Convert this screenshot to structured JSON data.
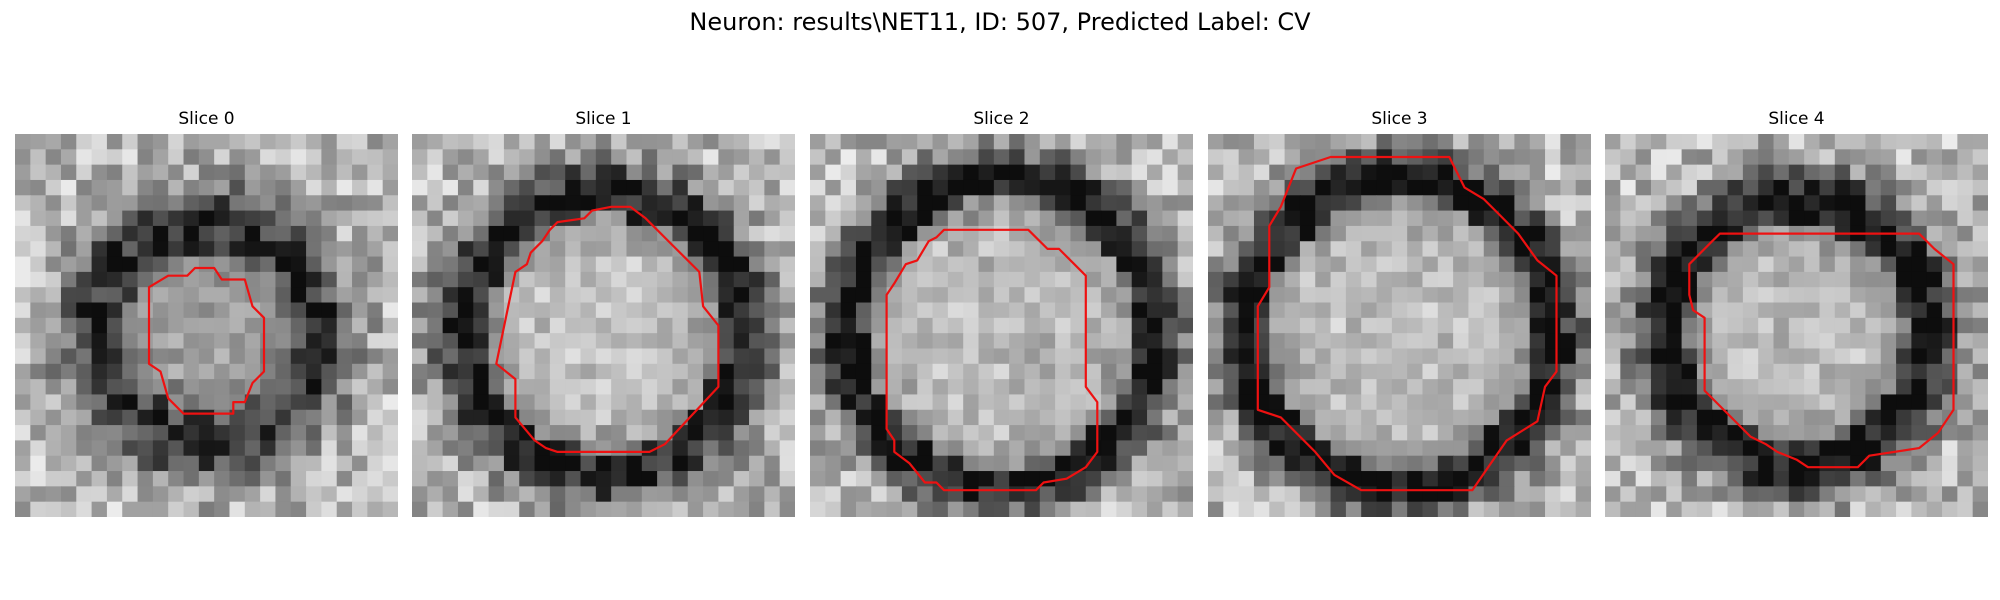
{
  "figure": {
    "suptitle": "Neuron: results\\NET11, ID: 507, Predicted Label: CV",
    "contour_color": "#ee1111",
    "panels": [
      {
        "title": "Slice 0",
        "ring_radius": 0.28,
        "ring_width": 0.11,
        "ring_darkness": 0.55,
        "center_brightness": 0.58,
        "seed": 11,
        "contour": [
          [
            0.35,
            0.4
          ],
          [
            0.4,
            0.37
          ],
          [
            0.45,
            0.37
          ],
          [
            0.47,
            0.35
          ],
          [
            0.52,
            0.35
          ],
          [
            0.54,
            0.38
          ],
          [
            0.6,
            0.38
          ],
          [
            0.62,
            0.45
          ],
          [
            0.65,
            0.48
          ],
          [
            0.65,
            0.62
          ],
          [
            0.62,
            0.65
          ],
          [
            0.6,
            0.7
          ],
          [
            0.57,
            0.7
          ],
          [
            0.57,
            0.73
          ],
          [
            0.44,
            0.73
          ],
          [
            0.4,
            0.69
          ],
          [
            0.38,
            0.62
          ],
          [
            0.35,
            0.6
          ]
        ]
      },
      {
        "title": "Slice 1",
        "ring_radius": 0.36,
        "ring_width": 0.09,
        "ring_darkness": 0.62,
        "center_brightness": 0.8,
        "seed": 23,
        "contour": [
          [
            0.27,
            0.36
          ],
          [
            0.3,
            0.34
          ],
          [
            0.31,
            0.31
          ],
          [
            0.34,
            0.28
          ],
          [
            0.36,
            0.25
          ],
          [
            0.38,
            0.23
          ],
          [
            0.45,
            0.22
          ],
          [
            0.47,
            0.2
          ],
          [
            0.52,
            0.19
          ],
          [
            0.57,
            0.19
          ],
          [
            0.61,
            0.22
          ],
          [
            0.68,
            0.29
          ],
          [
            0.75,
            0.36
          ],
          [
            0.76,
            0.45
          ],
          [
            0.8,
            0.5
          ],
          [
            0.8,
            0.66
          ],
          [
            0.66,
            0.81
          ],
          [
            0.62,
            0.83
          ],
          [
            0.38,
            0.83
          ],
          [
            0.35,
            0.82
          ],
          [
            0.32,
            0.8
          ],
          [
            0.27,
            0.74
          ],
          [
            0.27,
            0.64
          ],
          [
            0.22,
            0.6
          ]
        ]
      },
      {
        "title": "Slice 2",
        "ring_radius": 0.4,
        "ring_width": 0.08,
        "ring_darkness": 0.66,
        "center_brightness": 0.74,
        "seed": 37,
        "contour": [
          [
            0.33,
            0.27
          ],
          [
            0.34,
            0.26
          ],
          [
            0.35,
            0.25
          ],
          [
            0.57,
            0.25
          ],
          [
            0.62,
            0.3
          ],
          [
            0.65,
            0.3
          ],
          [
            0.72,
            0.37
          ],
          [
            0.72,
            0.66
          ],
          [
            0.75,
            0.7
          ],
          [
            0.75,
            0.83
          ],
          [
            0.72,
            0.87
          ],
          [
            0.67,
            0.9
          ],
          [
            0.61,
            0.91
          ],
          [
            0.59,
            0.93
          ],
          [
            0.35,
            0.93
          ],
          [
            0.33,
            0.91
          ],
          [
            0.3,
            0.91
          ],
          [
            0.26,
            0.86
          ],
          [
            0.22,
            0.83
          ],
          [
            0.22,
            0.8
          ],
          [
            0.2,
            0.77
          ],
          [
            0.2,
            0.42
          ],
          [
            0.22,
            0.39
          ],
          [
            0.25,
            0.34
          ],
          [
            0.28,
            0.33
          ],
          [
            0.31,
            0.28
          ]
        ]
      },
      {
        "title": "Slice 3",
        "ring_radius": 0.4,
        "ring_width": 0.08,
        "ring_darkness": 0.7,
        "center_brightness": 0.76,
        "seed": 53,
        "contour": [
          [
            0.16,
            0.24
          ],
          [
            0.19,
            0.19
          ],
          [
            0.23,
            0.09
          ],
          [
            0.32,
            0.06
          ],
          [
            0.63,
            0.06
          ],
          [
            0.67,
            0.14
          ],
          [
            0.72,
            0.17
          ],
          [
            0.76,
            0.21
          ],
          [
            0.81,
            0.26
          ],
          [
            0.86,
            0.33
          ],
          [
            0.91,
            0.37
          ],
          [
            0.91,
            0.62
          ],
          [
            0.88,
            0.66
          ],
          [
            0.86,
            0.75
          ],
          [
            0.78,
            0.8
          ],
          [
            0.69,
            0.93
          ],
          [
            0.4,
            0.93
          ],
          [
            0.33,
            0.89
          ],
          [
            0.28,
            0.83
          ],
          [
            0.19,
            0.74
          ],
          [
            0.13,
            0.72
          ],
          [
            0.13,
            0.45
          ],
          [
            0.16,
            0.4
          ]
        ]
      },
      {
        "title": "Slice 4",
        "ring_radius": 0.34,
        "ring_width": 0.09,
        "ring_darkness": 0.68,
        "center_brightness": 0.74,
        "seed": 71,
        "contour": [
          [
            0.22,
            0.34
          ],
          [
            0.28,
            0.28
          ],
          [
            0.3,
            0.26
          ],
          [
            0.82,
            0.26
          ],
          [
            0.86,
            0.3
          ],
          [
            0.91,
            0.34
          ],
          [
            0.91,
            0.72
          ],
          [
            0.87,
            0.78
          ],
          [
            0.82,
            0.82
          ],
          [
            0.69,
            0.84
          ],
          [
            0.66,
            0.87
          ],
          [
            0.53,
            0.87
          ],
          [
            0.5,
            0.85
          ],
          [
            0.45,
            0.83
          ],
          [
            0.42,
            0.81
          ],
          [
            0.38,
            0.79
          ],
          [
            0.26,
            0.67
          ],
          [
            0.26,
            0.48
          ],
          [
            0.23,
            0.46
          ],
          [
            0.22,
            0.42
          ]
        ]
      }
    ]
  }
}
